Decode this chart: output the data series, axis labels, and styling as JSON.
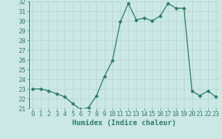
{
  "x": [
    0,
    1,
    2,
    3,
    4,
    5,
    6,
    7,
    8,
    9,
    10,
    11,
    12,
    13,
    14,
    15,
    16,
    17,
    18,
    19,
    20,
    21,
    22,
    23
  ],
  "y": [
    23,
    23,
    22.8,
    22.5,
    22.2,
    21.5,
    20.9,
    21.1,
    22.3,
    24.3,
    25.9,
    29.9,
    31.8,
    30.1,
    30.3,
    30.0,
    30.5,
    31.8,
    31.3,
    31.3,
    22.8,
    22.3,
    22.8,
    22.2
  ],
  "xlabel": "Humidex (Indice chaleur)",
  "ylim": [
    21,
    32
  ],
  "xlim": [
    -0.5,
    23.5
  ],
  "yticks": [
    21,
    22,
    23,
    24,
    25,
    26,
    27,
    28,
    29,
    30,
    31,
    32
  ],
  "xticks": [
    0,
    1,
    2,
    3,
    4,
    5,
    6,
    7,
    8,
    9,
    10,
    11,
    12,
    13,
    14,
    15,
    16,
    17,
    18,
    19,
    20,
    21,
    22,
    23
  ],
  "line_color": "#2d7d6e",
  "marker": "D",
  "marker_size": 2.5,
  "line_width": 1.0,
  "bg_color": "#cce8e4",
  "grid_color": "#b0d4cc",
  "tick_label_color": "#2d7d6e",
  "xlabel_color": "#2d7d6e",
  "xlabel_fontsize": 7.5,
  "tick_fontsize": 6.5
}
